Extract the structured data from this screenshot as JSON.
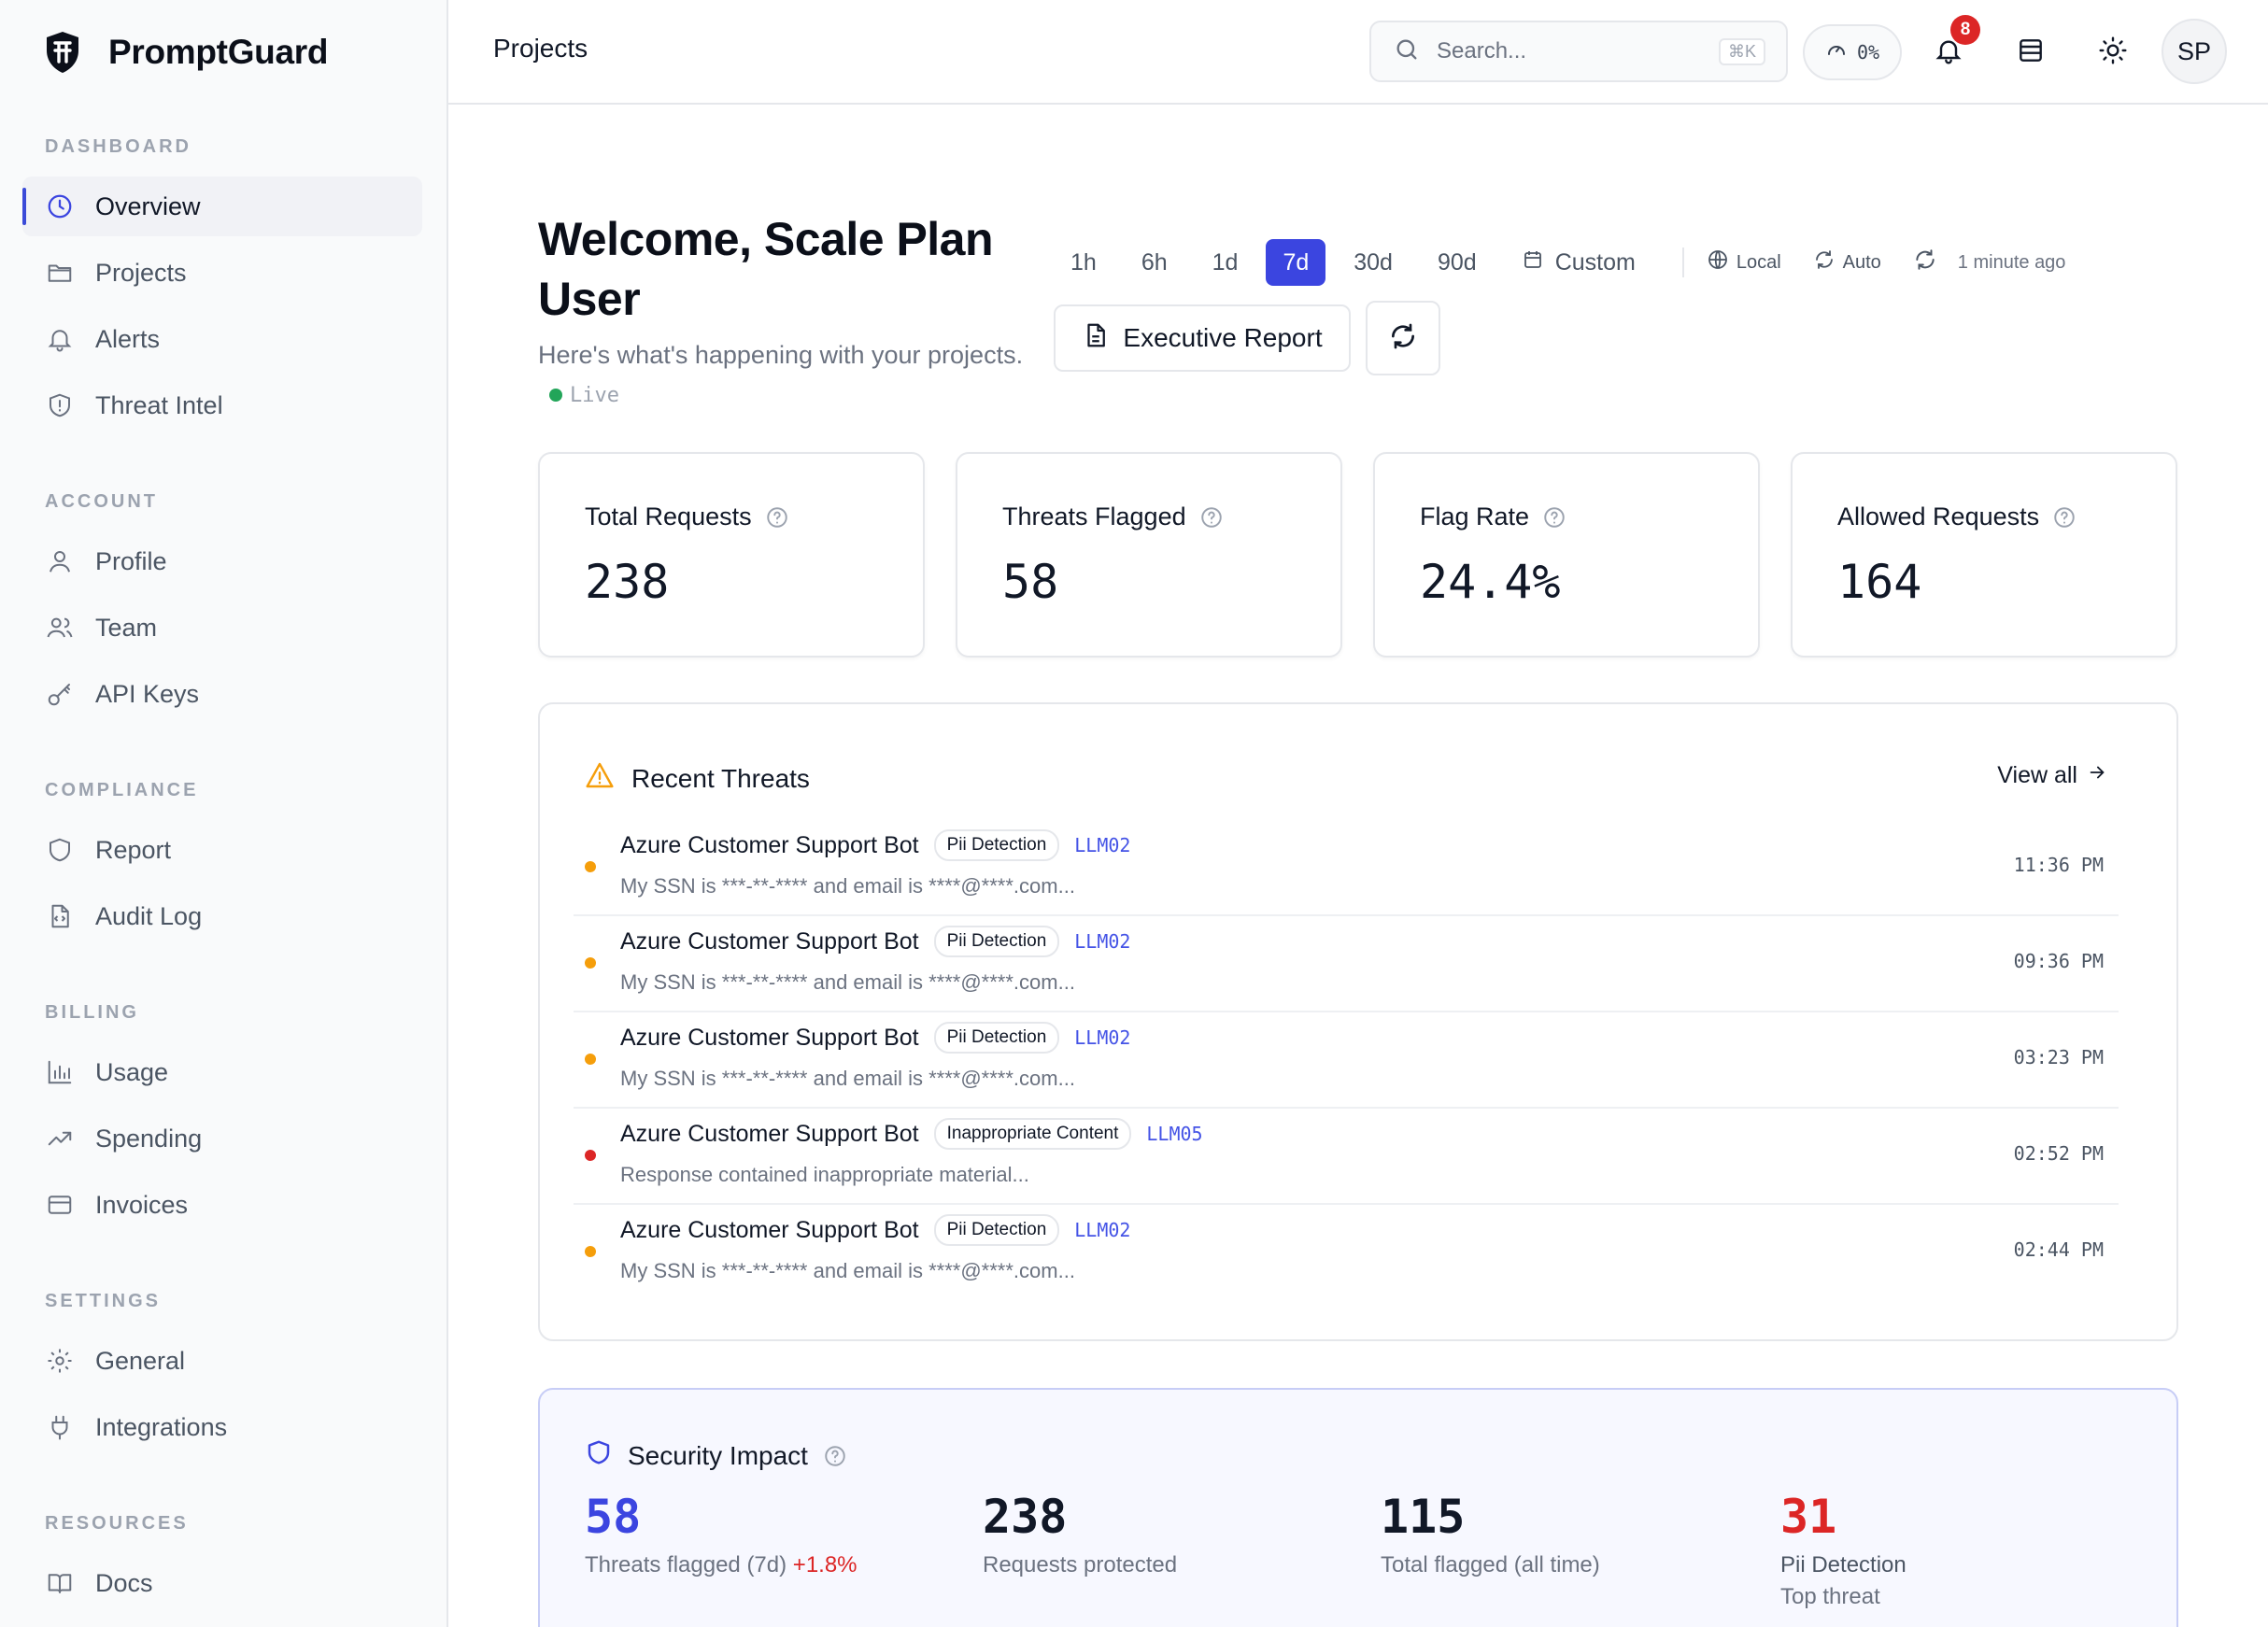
{
  "brand": {
    "name": "PromptGuard"
  },
  "sidebar": {
    "sections": [
      {
        "title": "DASHBOARD",
        "items": [
          {
            "label": "Overview",
            "icon": "clock-icon",
            "active": true
          },
          {
            "label": "Projects",
            "icon": "folder-icon"
          },
          {
            "label": "Alerts",
            "icon": "bell-icon"
          },
          {
            "label": "Threat Intel",
            "icon": "shield-alert-icon"
          }
        ]
      },
      {
        "title": "ACCOUNT",
        "items": [
          {
            "label": "Profile",
            "icon": "user-icon"
          },
          {
            "label": "Team",
            "icon": "users-icon"
          },
          {
            "label": "API Keys",
            "icon": "key-icon"
          }
        ]
      },
      {
        "title": "COMPLIANCE",
        "items": [
          {
            "label": "Report",
            "icon": "shield-icon"
          },
          {
            "label": "Audit Log",
            "icon": "file-code-icon"
          }
        ]
      },
      {
        "title": "BILLING",
        "items": [
          {
            "label": "Usage",
            "icon": "bar-chart-icon"
          },
          {
            "label": "Spending",
            "icon": "trending-up-icon"
          },
          {
            "label": "Invoices",
            "icon": "credit-card-icon"
          }
        ]
      },
      {
        "title": "SETTINGS",
        "items": [
          {
            "label": "General",
            "icon": "gear-icon"
          },
          {
            "label": "Integrations",
            "icon": "plug-icon"
          }
        ]
      },
      {
        "title": "RESOURCES",
        "items": [
          {
            "label": "Docs",
            "icon": "book-icon"
          }
        ]
      }
    ]
  },
  "header": {
    "title": "Projects",
    "search_placeholder": "Search...",
    "search_shortcut": "⌘K",
    "gauge_value": "0%",
    "notification_count": "8",
    "avatar_initials": "SP"
  },
  "welcome": {
    "title": "Welcome, Scale Plan User",
    "subtitle": "Here's what's happening with your projects.",
    "live_label": "Live"
  },
  "time_range": {
    "options": [
      "1h",
      "6h",
      "1d",
      "7d",
      "30d",
      "90d"
    ],
    "selected": "7d",
    "custom_label": "Custom",
    "timezone_label": "Local",
    "auto_label": "Auto",
    "updated_label": "1 minute ago"
  },
  "actions": {
    "executive_report": "Executive Report"
  },
  "stats": [
    {
      "label": "Total Requests",
      "value": "238"
    },
    {
      "label": "Threats Flagged",
      "value": "58"
    },
    {
      "label": "Flag Rate",
      "value": "24.4%"
    },
    {
      "label": "Allowed Requests",
      "value": "164"
    }
  ],
  "recent_threats": {
    "title": "Recent Threats",
    "view_all": "View all",
    "items": [
      {
        "name": "Azure Customer Support Bot",
        "tag": "Pii Detection",
        "code": "LLM02",
        "desc": "My SSN is ***-**-**** and email is ****@****.com...",
        "time": "11:36 PM",
        "severity_color": "#f59e0b"
      },
      {
        "name": "Azure Customer Support Bot",
        "tag": "Pii Detection",
        "code": "LLM02",
        "desc": "My SSN is ***-**-**** and email is ****@****.com...",
        "time": "09:36 PM",
        "severity_color": "#f59e0b"
      },
      {
        "name": "Azure Customer Support Bot",
        "tag": "Pii Detection",
        "code": "LLM02",
        "desc": "My SSN is ***-**-**** and email is ****@****.com...",
        "time": "03:23 PM",
        "severity_color": "#f59e0b"
      },
      {
        "name": "Azure Customer Support Bot",
        "tag": "Inappropriate Content",
        "code": "LLM05",
        "desc": "Response contained inappropriate material...",
        "time": "02:52 PM",
        "severity_color": "#dc2626"
      },
      {
        "name": "Azure Customer Support Bot",
        "tag": "Pii Detection",
        "code": "LLM02",
        "desc": "My SSN is ***-**-**** and email is ****@****.com...",
        "time": "02:44 PM",
        "severity_color": "#f59e0b"
      }
    ]
  },
  "security_impact": {
    "title": "Security Impact",
    "metrics": [
      {
        "value": "58",
        "label": "Threats flagged (7d)",
        "delta": "+1.8%",
        "color": "#3b45e0"
      },
      {
        "value": "238",
        "label": "Requests protected",
        "color": "#111827"
      },
      {
        "value": "115",
        "label": "Total flagged (all time)",
        "color": "#111827"
      },
      {
        "value": "31",
        "label": "Pii Detection",
        "sub": "Top threat",
        "color": "#dc2626"
      }
    ]
  }
}
